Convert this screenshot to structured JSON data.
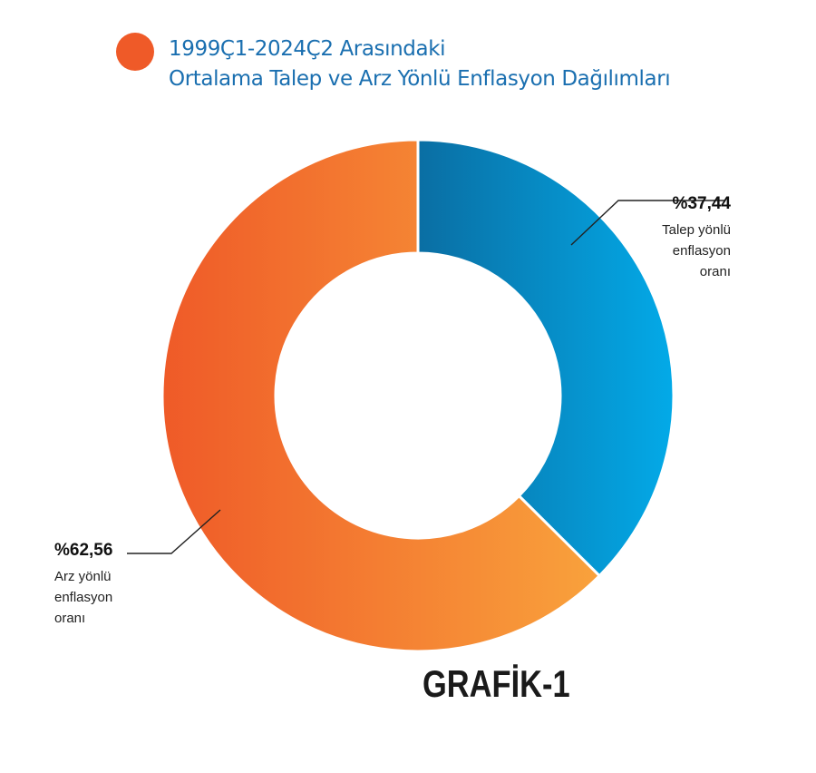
{
  "header": {
    "title_line_1": "1999Ç1-2024Ç2 Arasındaki",
    "title_line_2": "Ortalama Talep ve Arz Yönlü Enflasyon Dağılımları"
  },
  "footer": {
    "label": "GRAFİK-1"
  },
  "colors": {
    "title_dot": "#ef5a28",
    "title_text": "#1a6fb0",
    "talep_start": "#0a6ea3",
    "talep_end": "#03aae8",
    "arz_start": "#ef5a28",
    "arz_end": "#f9a23c"
  },
  "chart_data": {
    "type": "pie",
    "variant": "donut",
    "slices": [
      {
        "value_label": "%37,44",
        "label_lines": [
          "Talep yönlü",
          "enflasyon",
          "oranı"
        ],
        "value": 37.44
      },
      {
        "value_label": "%62,56",
        "label_lines": [
          "Arz yönlü",
          "enflasyon",
          "oranı"
        ],
        "value": 62.56
      }
    ],
    "start_angle": "12 o'clock",
    "direction": "clockwise",
    "legend": "none"
  }
}
